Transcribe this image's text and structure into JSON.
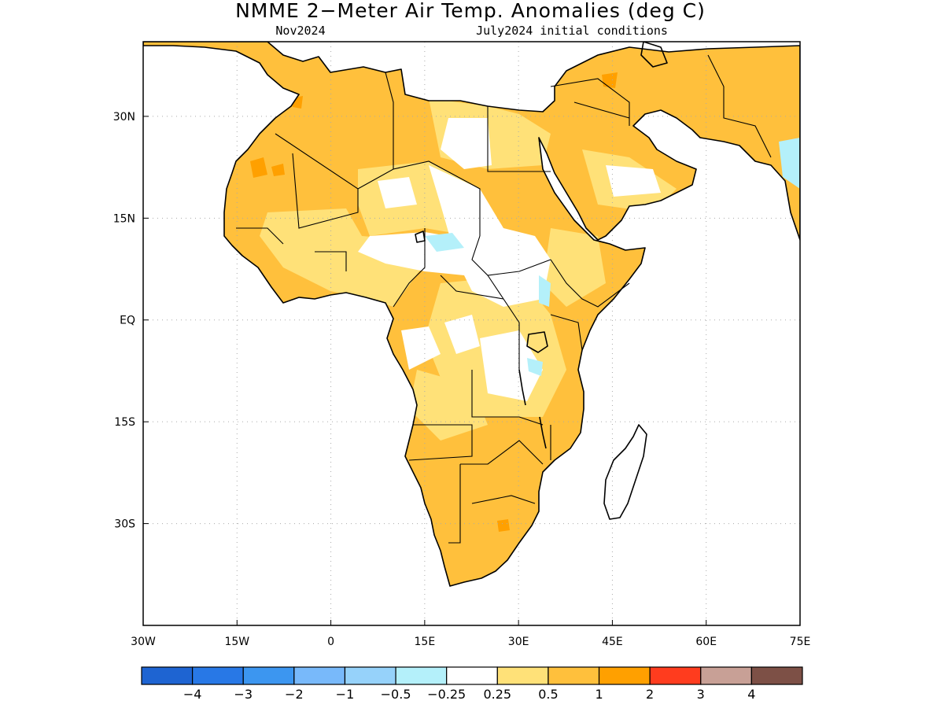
{
  "title": "NMME 2−Meter Air Temp. Anomalies (deg C)",
  "target_month": "Nov2024",
  "initial_conditions": "July2024 initial conditions",
  "map": {
    "lon_range": [
      -30,
      75
    ],
    "lat_range": [
      -45,
      41
    ],
    "lon_ticks": [
      {
        "value": -30,
        "label": "30W"
      },
      {
        "value": -15,
        "label": "15W"
      },
      {
        "value": 0,
        "label": "0"
      },
      {
        "value": 15,
        "label": "15E"
      },
      {
        "value": 30,
        "label": "30E"
      },
      {
        "value": 45,
        "label": "45E"
      },
      {
        "value": 60,
        "label": "60E"
      },
      {
        "value": 75,
        "label": "75E"
      }
    ],
    "lat_ticks": [
      {
        "value": 30,
        "label": "30N"
      },
      {
        "value": 15,
        "label": "15N"
      },
      {
        "value": 0,
        "label": "EQ"
      },
      {
        "value": -15,
        "label": "15S"
      },
      {
        "value": -30,
        "label": "30S"
      }
    ],
    "grid": true
  },
  "colorbar": {
    "colors": [
      "#1e64d2",
      "#2878e6",
      "#3c96f0",
      "#78b9fa",
      "#96d2fa",
      "#b4f0fa",
      "#ffffff",
      "#ffe178",
      "#ffc03c",
      "#ffa000",
      "#ff3c1e",
      "#c8a096",
      "#7d5046"
    ],
    "labels": [
      "−4",
      "−3",
      "−2",
      "−1",
      "−0.5",
      "−0.25",
      "0.25",
      "0.5",
      "1",
      "2",
      "3",
      "4"
    ]
  },
  "colors": {
    "ocean": "#ffffff",
    "weak_warm": "#ffe178",
    "warm": "#ffc03c",
    "strong_warm": "#ffa000",
    "weak_cool": "#b4f0fa"
  }
}
